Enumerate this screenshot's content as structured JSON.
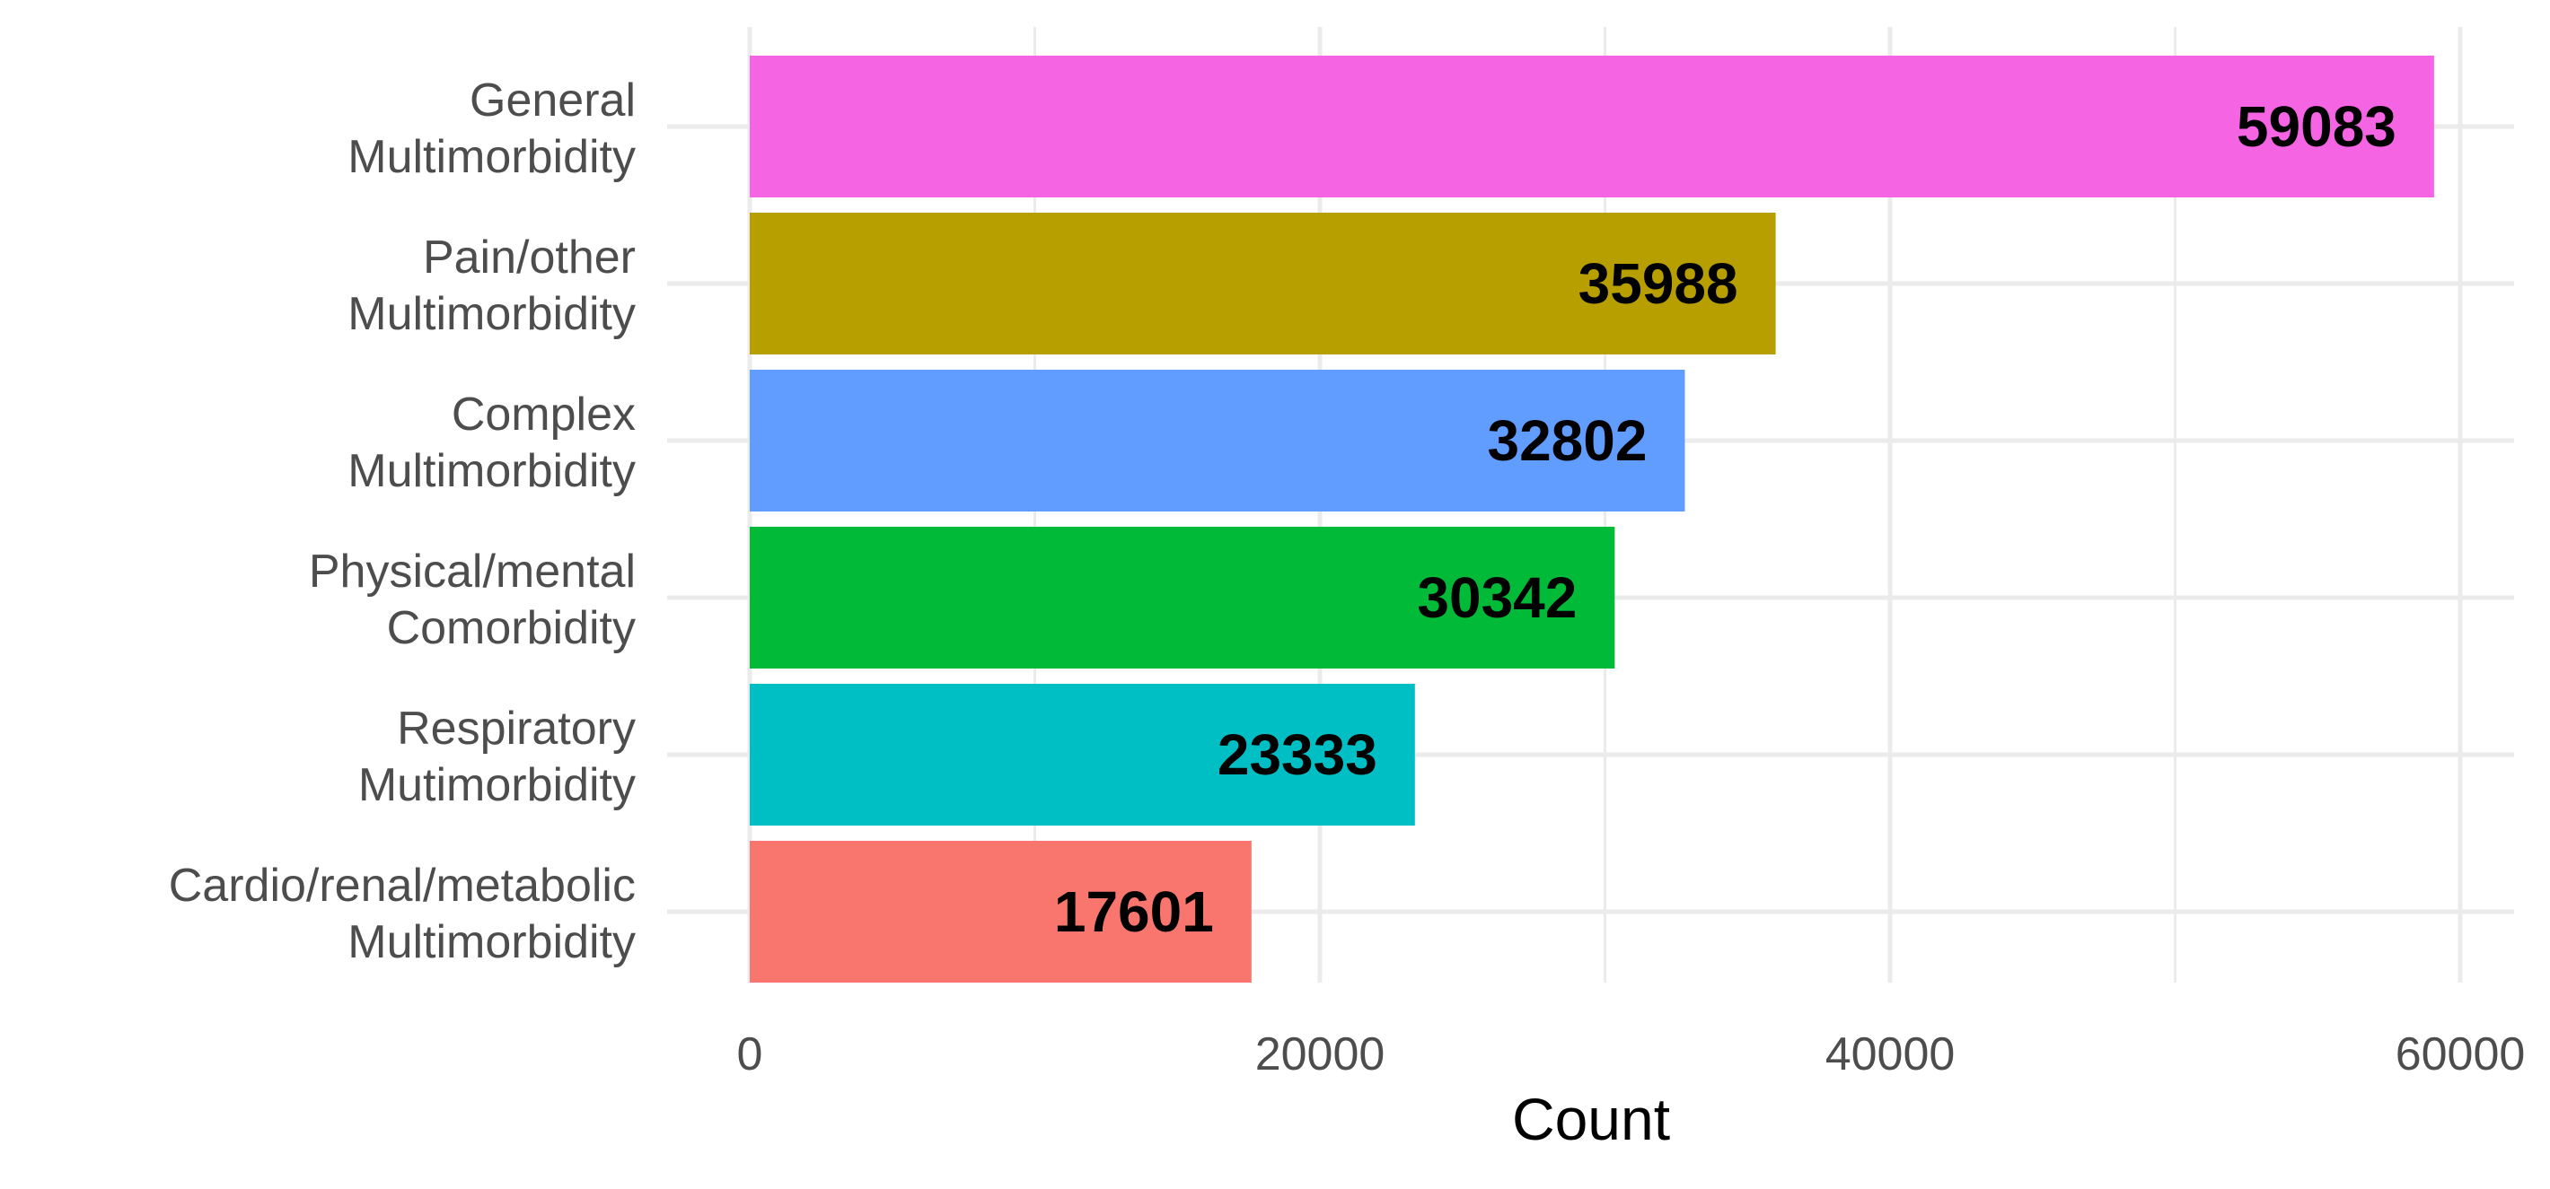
{
  "chart_data": {
    "type": "bar",
    "orientation": "horizontal",
    "categories": [
      [
        "General",
        "Multimorbidity"
      ],
      [
        "Pain/other",
        "Multimorbidity"
      ],
      [
        "Complex",
        "Multimorbidity"
      ],
      [
        "Physical/mental",
        "Comorbidity"
      ],
      [
        "Respiratory",
        "Mutimorbidity"
      ],
      [
        "Cardio/renal/metabolic",
        "Multimorbidity"
      ]
    ],
    "values": [
      59083,
      35988,
      32802,
      30342,
      23333,
      17601
    ],
    "data_labels": [
      "59083",
      "35988",
      "32802",
      "30342",
      "23333",
      "17601"
    ],
    "colors": [
      "#F564E3",
      "#B79F00",
      "#619CFF",
      "#00BA38",
      "#00BFC4",
      "#F8766D"
    ],
    "xlabel": "Count",
    "ylabel": "",
    "xlim": [
      0,
      60000
    ],
    "x_ticks": [
      0,
      20000,
      40000,
      60000
    ],
    "x_tick_labels": [
      "0",
      "20000",
      "40000",
      "60000"
    ],
    "minor_ticks": [
      10000,
      30000,
      50000
    ],
    "grid": true,
    "legend": "none",
    "gridline_color": "#EBEBEB"
  }
}
